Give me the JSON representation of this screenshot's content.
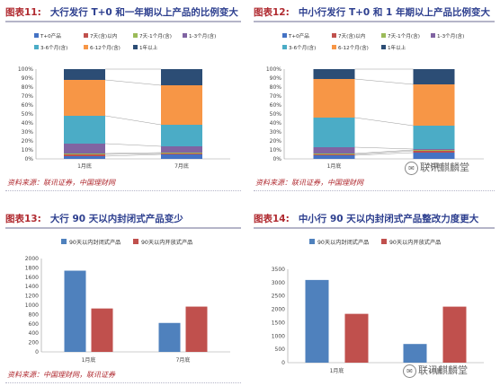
{
  "panels": [
    {
      "label": "图表11:",
      "title": "大行发行 T+0 和一年期以上产品的比例变大",
      "source": "资料来源：联讯证券，中国理财网"
    },
    {
      "label": "图表12:",
      "title": "中小行发行 T+0 和 1 年期以上产品比例变大",
      "source": "资料来源：联讯证券，中国理财网"
    },
    {
      "label": "图表13:",
      "title": "大行 90 天以内封闭式产品变少",
      "source": "资料来源：中国理财网，联讯证券"
    },
    {
      "label": "图表14:",
      "title": "中小行 90 天以内封闭式产品整改力度更大",
      "source": ""
    }
  ],
  "watermark": {
    "text": "联讯麒麟堂",
    "icon": "wechat-icon"
  },
  "chart_data": [
    {
      "type": "bar",
      "stacked": "percent",
      "categories": [
        "1月底",
        "7月底"
      ],
      "series": [
        {
          "name": "T+0产品",
          "color": "#4472c4",
          "values": [
            3,
            5
          ]
        },
        {
          "name": "7天(含)以内",
          "color": "#c0504d",
          "values": [
            2,
            1
          ]
        },
        {
          "name": "7天-1个月(含)",
          "color": "#9bbb59",
          "values": [
            1,
            1
          ]
        },
        {
          "name": "1-3个月(含)",
          "color": "#8064a2",
          "values": [
            11,
            7
          ]
        },
        {
          "name": "3-6个月(含)",
          "color": "#4bacc6",
          "values": [
            31,
            24
          ]
        },
        {
          "name": "6-12个月(含)",
          "color": "#f79646",
          "values": [
            40,
            44
          ]
        },
        {
          "name": "1年以上",
          "color": "#2c4d75",
          "values": [
            12,
            18
          ]
        }
      ],
      "yticks": [
        "0%",
        "10%",
        "20%",
        "30%",
        "40%",
        "50%",
        "60%",
        "70%",
        "80%",
        "90%",
        "100%"
      ],
      "ylim": [
        0,
        100
      ],
      "legend": "top",
      "series_connectors": true
    },
    {
      "type": "bar",
      "stacked": "percent",
      "categories": [
        "1月底",
        "7月底"
      ],
      "series": [
        {
          "name": "T+0产品",
          "color": "#4472c4",
          "values": [
            4,
            7
          ]
        },
        {
          "name": "7天(含)以内",
          "color": "#c0504d",
          "values": [
            1,
            2
          ]
        },
        {
          "name": "7天-1个月(含)",
          "color": "#9bbb59",
          "values": [
            1,
            1
          ]
        },
        {
          "name": "1-3个月(含)",
          "color": "#8064a2",
          "values": [
            7,
            1
          ]
        },
        {
          "name": "3-6个月(含)",
          "color": "#4bacc6",
          "values": [
            33,
            26
          ]
        },
        {
          "name": "6-12个月(含)",
          "color": "#f79646",
          "values": [
            43,
            46
          ]
        },
        {
          "name": "1年以上",
          "color": "#2c4d75",
          "values": [
            11,
            17
          ]
        }
      ],
      "yticks": [
        "0%",
        "10%",
        "20%",
        "30%",
        "40%",
        "50%",
        "60%",
        "70%",
        "80%",
        "90%",
        "100%"
      ],
      "ylim": [
        0,
        100
      ],
      "legend": "top",
      "series_connectors": true
    },
    {
      "type": "bar",
      "categories": [
        "1月底",
        "7月底"
      ],
      "series": [
        {
          "name": "90天以内封闭式产品",
          "color": "#4f81bd",
          "values": [
            1740,
            620
          ]
        },
        {
          "name": "90天以内开放式产品",
          "color": "#c0504d",
          "values": [
            930,
            970
          ]
        }
      ],
      "yticks": [
        "0",
        "200",
        "400",
        "600",
        "800",
        "1000",
        "1200",
        "1400",
        "1600",
        "1800",
        "2000"
      ],
      "ylim": [
        0,
        2000
      ],
      "legend": "top"
    },
    {
      "type": "bar",
      "categories": [
        "1月底",
        "7月底"
      ],
      "series": [
        {
          "name": "90天以内封闭式产品",
          "color": "#4f81bd",
          "values": [
            3100,
            700
          ]
        },
        {
          "name": "90天以内开放式产品",
          "color": "#c0504d",
          "values": [
            1830,
            2100
          ]
        }
      ],
      "yticks": [
        "0",
        "500",
        "1000",
        "1500",
        "2000",
        "2500",
        "3000",
        "3500"
      ],
      "ylim": [
        0,
        3500
      ],
      "legend": "top"
    }
  ]
}
